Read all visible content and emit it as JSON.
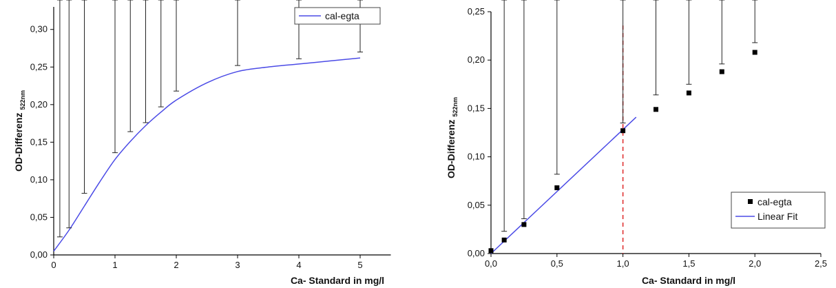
{
  "chart_data": [
    {
      "type": "line",
      "xlabel": "Ca- Standard in mg/l",
      "ylabel_main": "OD-Differenz",
      "ylabel_sub": "522nm",
      "xlim": [
        0,
        5.5
      ],
      "ylim": [
        0,
        0.33
      ],
      "x_ticks": [
        0,
        1,
        2,
        3,
        4,
        5
      ],
      "x_tick_labels": [
        "0",
        "1",
        "2",
        "3",
        "4",
        "5"
      ],
      "y_ticks": [
        0,
        0.05,
        0.1,
        0.15,
        0.2,
        0.25,
        0.3
      ],
      "y_tick_labels": [
        "0,00",
        "0,05",
        "0,10",
        "0,15",
        "0,20",
        "0,25",
        "0,30"
      ],
      "legend_position": "top-right",
      "series": [
        {
          "name": "cal-egta",
          "color": "#4a4ae6",
          "x": [
            0.1,
            0.25,
            0.5,
            1.0,
            1.25,
            1.5,
            1.75,
            2.0,
            3.0,
            4.0,
            5.0
          ],
          "y": [
            0.015,
            0.03,
            0.068,
            0.128,
            0.149,
            0.167,
            0.189,
            0.208,
            0.247,
            0.254,
            0.263
          ],
          "error": [
            0.009,
            0.006,
            0.014,
            0.008,
            0.015,
            0.009,
            0.008,
            0.01,
            0.005,
            0.007,
            0.007
          ]
        }
      ],
      "fit_curve": {
        "x": [
          0,
          0.25,
          0.5,
          0.75,
          1.0,
          1.25,
          1.5,
          1.75,
          2.0,
          2.5,
          3.0,
          3.5,
          4.0,
          4.5,
          5.0
        ],
        "y": [
          0.005,
          0.033,
          0.065,
          0.097,
          0.127,
          0.151,
          0.172,
          0.19,
          0.206,
          0.229,
          0.244,
          0.25,
          0.254,
          0.258,
          0.262
        ]
      }
    },
    {
      "type": "scatter",
      "xlabel": "Ca- Standard in mg/l",
      "ylabel_main": "OD-Differenz",
      "ylabel_sub": "522nm",
      "xlim": [
        0,
        2.5
      ],
      "ylim": [
        0,
        0.25
      ],
      "x_ticks": [
        0,
        0.5,
        1.0,
        1.5,
        2.0,
        2.5
      ],
      "x_tick_labels": [
        "0,0",
        "0,5",
        "1,0",
        "1,5",
        "2,0",
        "2,5"
      ],
      "y_ticks": [
        0,
        0.05,
        0.1,
        0.15,
        0.2,
        0.25
      ],
      "y_tick_labels": [
        "0,00",
        "0,05",
        "0,10",
        "0,15",
        "0,20",
        "0,25"
      ],
      "legend_position": "bottom-right",
      "series": [
        {
          "name": "cal-egta",
          "color": "#000000",
          "x": [
            0.0,
            0.1,
            0.25,
            0.5,
            1.0,
            1.25,
            1.5,
            1.75,
            2.0
          ],
          "y": [
            0.003,
            0.014,
            0.03,
            0.068,
            0.127,
            0.149,
            0.166,
            0.188,
            0.208
          ],
          "error": [
            0.0,
            0.009,
            0.006,
            0.014,
            0.008,
            0.015,
            0.009,
            0.008,
            0.01
          ]
        }
      ],
      "linear_fit": {
        "name": "Linear Fit",
        "color": "#4a4ae6",
        "x": [
          0,
          1.1
        ],
        "y": [
          0.0,
          0.141
        ]
      },
      "vertical_line": {
        "x": 1.0,
        "color": "#e03030"
      }
    }
  ]
}
